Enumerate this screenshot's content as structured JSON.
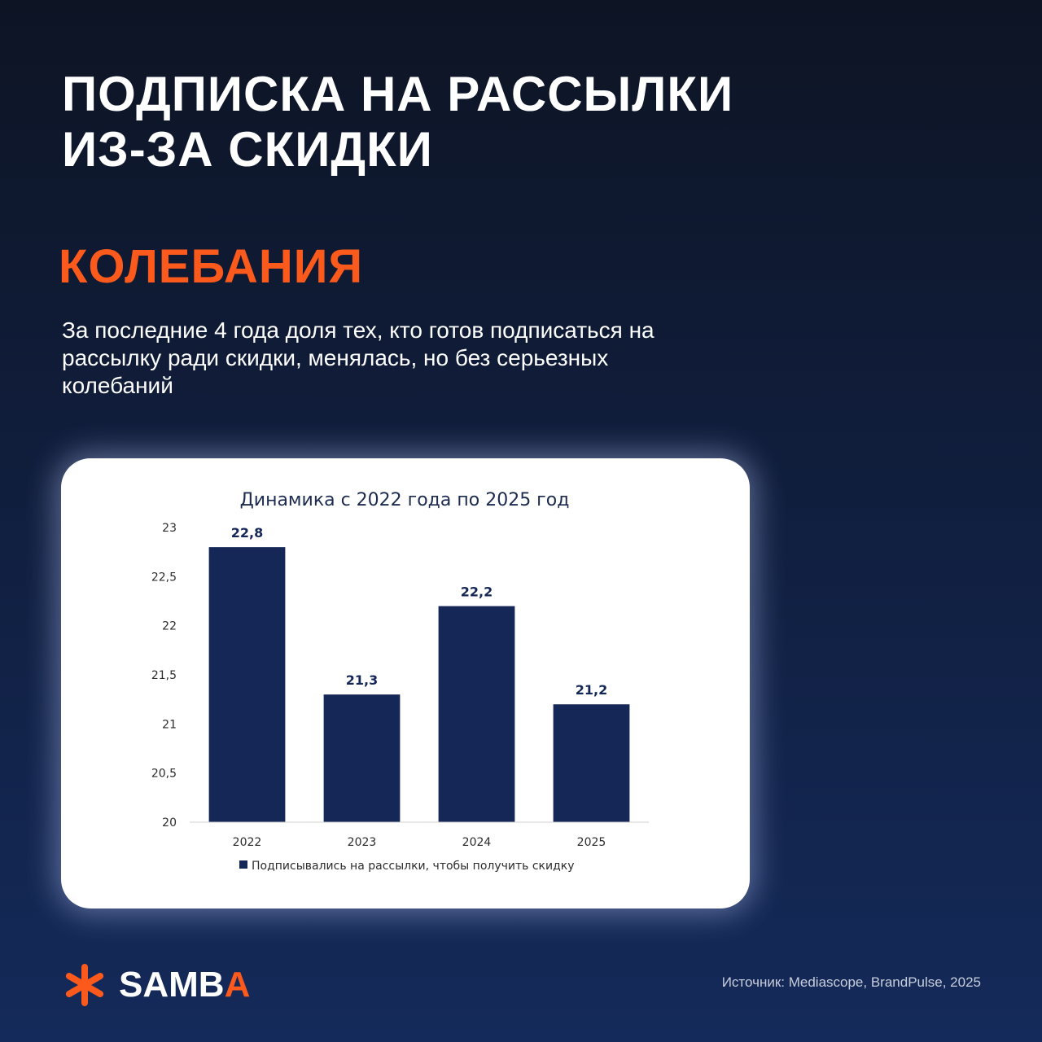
{
  "header": {
    "title_lines": [
      "ПОДПИСКА НА РАССЫЛКИ",
      "ИЗ-ЗА СКИДКИ"
    ],
    "subtitle": "КОЛЕБАНИЯ",
    "description": "За последние 4 года доля тех, кто готов подписаться на рассылку ради скидки, менялась, но без серьезных колебаний"
  },
  "chart_data": {
    "type": "bar",
    "title": "Динамика с 2022 года по 2025 год",
    "categories": [
      "2022",
      "2023",
      "2024",
      "2025"
    ],
    "series": [
      {
        "name": "Подписывались на рассылки, чтобы получить скидку",
        "values": [
          22.8,
          21.3,
          22.2,
          21.2
        ],
        "labels": [
          "22,8",
          "21,3",
          "22,2",
          "21,2"
        ]
      }
    ],
    "ylim": [
      20,
      23
    ],
    "yticks": [
      20,
      20.5,
      21,
      21.5,
      22,
      22.5,
      23
    ],
    "ytick_labels": [
      "20",
      "20,5",
      "21",
      "21,5",
      "22",
      "22,5",
      "23"
    ],
    "grid": false,
    "legend_position": "bottom",
    "bar_color": "#152756"
  },
  "footer": {
    "logo_text_main": "SAMB",
    "logo_text_accent": "A",
    "source": "Источник: Mediascope, BrandPulse, 2025"
  },
  "colors": {
    "accent": "#fb5a1c",
    "background_top": "#0d1424",
    "background_bottom": "#142a5a"
  }
}
